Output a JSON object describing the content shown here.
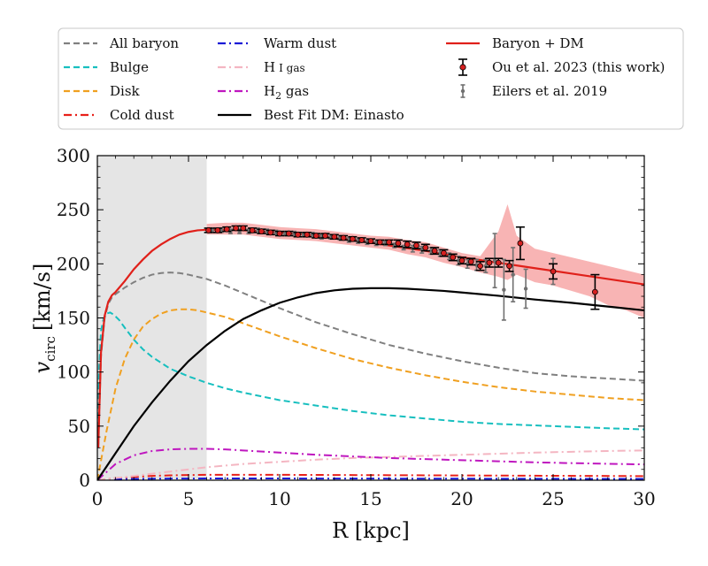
{
  "chart_data": {
    "type": "line",
    "xlabel": "R [kpc]",
    "ylabel_main": "v",
    "ylabel_sub": "circ",
    "ylabel_unit": "[km/s]",
    "xlim": [
      0,
      30
    ],
    "ylim": [
      0,
      300
    ],
    "xticks": [
      0,
      5,
      10,
      15,
      20,
      25,
      30
    ],
    "yticks": [
      0,
      50,
      100,
      150,
      200,
      250,
      300
    ],
    "shaded_region": {
      "x": [
        0,
        6
      ],
      "color": "#e5e5e5"
    },
    "legend_position": "top",
    "legend": [
      {
        "label": "All baryon",
        "color": "#808080",
        "style": "dashed"
      },
      {
        "label": "Bulge",
        "color": "#17bfbf",
        "style": "dashed"
      },
      {
        "label": "Disk",
        "color": "#f0a020",
        "style": "dashed"
      },
      {
        "label": "Cold dust",
        "color": "#e8201a",
        "style": "dashdot"
      },
      {
        "label": "Warm dust",
        "color": "#1a1ad6",
        "style": "dashdot"
      },
      {
        "label": "H",
        "label_suffix": "I gas",
        "color": "#f4b6c2",
        "style": "dashdot"
      },
      {
        "label": "H",
        "label_sub": "2",
        "label_suffix": " gas",
        "color": "#bf17bf",
        "style": "dashdot"
      },
      {
        "label": "Best Fit DM: Einasto",
        "color": "#000000",
        "style": "solid"
      },
      {
        "label": "Baryon + DM",
        "color": "#e0201a",
        "style": "solid"
      },
      {
        "label": "Ou et al. 2023 (this work)",
        "color": "#d62020",
        "style": "errorbar"
      },
      {
        "label": "Eilers et al. 2019",
        "color": "#707070",
        "style": "errorbar-small"
      }
    ],
    "series": [
      {
        "name": "All baryon",
        "color": "#808080",
        "style": "dashed",
        "x": [
          0.05,
          0.2,
          0.4,
          0.6,
          0.8,
          1.0,
          1.5,
          2,
          2.5,
          3,
          3.5,
          4,
          4.5,
          5,
          6,
          7,
          8,
          9,
          10,
          12,
          14,
          16,
          18,
          20,
          22,
          24,
          26,
          28,
          30
        ],
        "y": [
          30,
          115,
          150,
          163,
          169,
          172,
          178,
          183,
          187,
          190,
          191.5,
          192,
          191.5,
          190,
          186,
          180,
          173,
          166,
          159,
          146,
          135,
          125,
          117,
          110,
          104,
          99,
          96,
          94,
          92
        ]
      },
      {
        "name": "Bulge",
        "color": "#17bfbf",
        "style": "dashed",
        "x": [
          0.02,
          0.1,
          0.2,
          0.35,
          0.5,
          0.7,
          0.9,
          1.2,
          1.5,
          2,
          2.5,
          3,
          4,
          5,
          6,
          7,
          8,
          10,
          12,
          14,
          16,
          18,
          20,
          22,
          25,
          28,
          30
        ],
        "y": [
          30,
          105,
          138,
          150,
          154,
          155,
          153,
          148,
          141,
          130,
          121,
          114,
          103,
          96,
          90,
          85,
          81,
          74,
          69,
          64,
          60,
          57,
          54,
          52,
          50,
          48,
          47
        ]
      },
      {
        "name": "Disk",
        "color": "#f0a020",
        "style": "dashed",
        "x": [
          0,
          0.5,
          1,
          1.5,
          2,
          2.5,
          3,
          3.5,
          4,
          4.5,
          5,
          5.5,
          6,
          7,
          8,
          9,
          10,
          12,
          14,
          16,
          18,
          20,
          22,
          24,
          26,
          28,
          30
        ],
        "y": [
          0,
          45,
          85,
          112,
          130,
          142,
          149,
          154,
          157,
          158,
          158,
          157,
          155,
          151,
          145,
          139,
          133,
          122,
          112,
          104,
          97,
          91,
          86,
          82,
          79,
          76,
          74
        ]
      },
      {
        "name": "Cold dust",
        "color": "#e8201a",
        "style": "dashdot",
        "x": [
          0,
          1,
          2,
          3,
          4,
          6,
          8,
          10,
          15,
          20,
          25,
          30
        ],
        "y": [
          0,
          2,
          3,
          4,
          4.5,
          5,
          5,
          5,
          4.7,
          4.4,
          4.1,
          3.8
        ]
      },
      {
        "name": "Warm dust",
        "color": "#1a1ad6",
        "style": "dashdot",
        "x": [
          0,
          1,
          2,
          4,
          6,
          10,
          15,
          20,
          25,
          30
        ],
        "y": [
          0,
          0.8,
          1.2,
          1.5,
          1.6,
          1.6,
          1.5,
          1.4,
          1.3,
          1.2
        ]
      },
      {
        "name": "HI gas",
        "color": "#f4b6c2",
        "style": "dashdot",
        "x": [
          0,
          2,
          4,
          6,
          8,
          10,
          12,
          14,
          16,
          18,
          20,
          22,
          24,
          26,
          28,
          30
        ],
        "y": [
          0,
          4,
          8,
          12,
          15,
          17,
          19,
          20.5,
          21.5,
          22.5,
          23.5,
          24.5,
          25.5,
          26.3,
          27,
          27.5
        ]
      },
      {
        "name": "H2 gas",
        "color": "#bf17bf",
        "style": "dashdot",
        "x": [
          0,
          1,
          2,
          3,
          4,
          5,
          6,
          7,
          8,
          10,
          12,
          14,
          16,
          18,
          20,
          22,
          24,
          26,
          28,
          30
        ],
        "y": [
          0,
          15,
          23,
          27,
          28.5,
          29,
          29,
          28.5,
          27.5,
          25.5,
          23.5,
          22,
          20.5,
          19.5,
          18.5,
          17.5,
          16.5,
          15.8,
          15.2,
          14.6
        ]
      },
      {
        "name": "Best Fit DM: Einasto",
        "color": "#000000",
        "style": "solid",
        "x": [
          0,
          1,
          2,
          3,
          4,
          5,
          6,
          7,
          8,
          9,
          10,
          11,
          12,
          13,
          14,
          15,
          16,
          17,
          18,
          19,
          20,
          22,
          24,
          26,
          28,
          30
        ],
        "y": [
          0,
          25,
          50,
          72,
          92,
          110,
          125,
          138,
          149,
          157,
          164,
          169,
          173,
          175.5,
          177,
          177.5,
          177.5,
          177,
          176,
          175,
          173.5,
          170.5,
          167,
          164,
          160.5,
          157
        ]
      },
      {
        "name": "Baryon + DM",
        "color": "#e0201a",
        "style": "solid",
        "x": [
          0.05,
          0.2,
          0.4,
          0.6,
          0.8,
          1,
          1.5,
          2,
          2.5,
          3,
          3.5,
          4,
          4.5,
          5,
          5.5,
          6,
          7,
          8,
          10,
          12,
          14,
          16,
          18,
          20,
          22,
          24,
          26,
          28,
          30
        ],
        "y": [
          30,
          118,
          152,
          165,
          171,
          174,
          184,
          195,
          204,
          212,
          218,
          223,
          227,
          229.5,
          231,
          231.5,
          231.5,
          231,
          229,
          226,
          222,
          217,
          212,
          206,
          201,
          196,
          191,
          186,
          181
        ]
      }
    ],
    "band": {
      "name": "Ou et al. 2023 uncertainty",
      "color": "#f8b4b4",
      "x": [
        6,
        7,
        8,
        9,
        10,
        11,
        12,
        13,
        14,
        15,
        16,
        17,
        18,
        19,
        20,
        21,
        22,
        22.5,
        23,
        24,
        25,
        26,
        27,
        28,
        29,
        30
      ],
      "lower": [
        227,
        227,
        227,
        225,
        223,
        222,
        221,
        219,
        217,
        215,
        213,
        209,
        206,
        201,
        197,
        192,
        188,
        185,
        190,
        183,
        180,
        175,
        170,
        162,
        157,
        150
      ],
      "upper": [
        237,
        238,
        238,
        236,
        234,
        233,
        232,
        230,
        228,
        226,
        225,
        222,
        220,
        215,
        210,
        207,
        230,
        255,
        226,
        214,
        210,
        206,
        202,
        198,
        194,
        190
      ]
    },
    "ou2023": {
      "x": [
        6.1,
        6.6,
        7.1,
        7.6,
        8.0,
        8.5,
        9.0,
        9.5,
        10.0,
        10.5,
        11.0,
        11.5,
        12.0,
        12.5,
        13.0,
        13.5,
        14.0,
        14.5,
        15.0,
        15.5,
        16.0,
        16.5,
        17.0,
        17.5,
        18.0,
        18.5,
        19.0,
        19.5,
        20.0,
        20.5,
        21.0,
        21.5,
        22.0,
        22.6,
        23.2,
        25.0,
        27.3
      ],
      "y": [
        231,
        231,
        232,
        233,
        233,
        231,
        230,
        229,
        228,
        228,
        227,
        227,
        226,
        226,
        225,
        224,
        223,
        222,
        221,
        220,
        220,
        219,
        218,
        217,
        215,
        212,
        210,
        206,
        203,
        202,
        198,
        201,
        201,
        198,
        219,
        193,
        174
      ],
      "err": [
        2,
        2,
        2,
        2,
        2,
        2,
        2,
        2,
        2,
        2,
        2,
        2,
        2,
        2,
        2,
        2,
        2,
        2,
        2,
        2,
        2,
        3,
        3,
        3,
        3,
        3,
        3,
        3,
        3,
        3,
        4,
        4,
        4,
        5,
        15,
        7,
        16
      ]
    },
    "eilers2019": {
      "x": [
        6.3,
        6.8,
        7.3,
        7.8,
        8.3,
        8.8,
        9.3,
        9.8,
        10.3,
        10.8,
        11.3,
        11.8,
        12.3,
        12.8,
        13.3,
        13.8,
        14.3,
        14.8,
        15.3,
        15.8,
        16.3,
        16.8,
        17.3,
        17.8,
        18.3,
        18.8,
        19.3,
        19.8,
        20.3,
        20.8,
        21.3,
        21.8,
        22.3,
        22.8,
        23.5,
        25
      ],
      "y": [
        231,
        231,
        230,
        230,
        230,
        231,
        230,
        229,
        228,
        228,
        227,
        227,
        225,
        225,
        224,
        222,
        221,
        220,
        219,
        219,
        217,
        215,
        214,
        213,
        212,
        210,
        207,
        203,
        200,
        199,
        198,
        203,
        176,
        190,
        177,
        193
      ],
      "err": [
        2,
        2,
        2,
        2,
        2,
        2,
        2,
        2,
        2,
        2,
        2,
        2,
        2,
        2,
        2,
        2,
        2,
        2,
        2,
        2,
        2,
        2,
        3,
        3,
        3,
        3,
        3,
        4,
        4,
        5,
        6,
        25,
        28,
        25,
        18,
        12
      ]
    }
  }
}
